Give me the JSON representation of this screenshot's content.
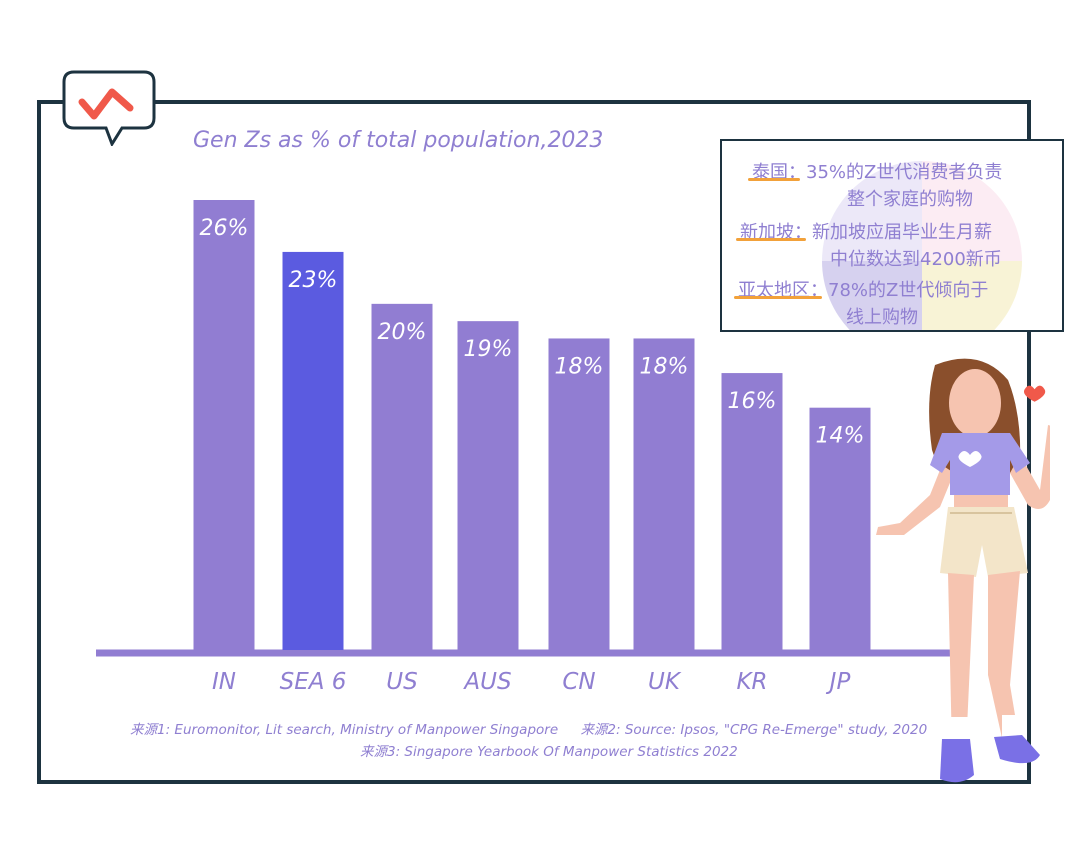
{
  "chart_data": {
    "type": "bar",
    "title": "Gen Zs as % of total population,2023",
    "categories": [
      "IN",
      "SEA 6",
      "US",
      "AUS",
      "CN",
      "UK",
      "KR",
      "JP"
    ],
    "values": [
      26,
      23,
      20,
      19,
      18,
      18,
      16,
      14
    ],
    "value_labels": [
      "26%",
      "23%",
      "20%",
      "19%",
      "18%",
      "18%",
      "16%",
      "14%"
    ],
    "unit": "%",
    "ylim": [
      0,
      26
    ],
    "grid": false,
    "highlight_index": 1,
    "colors": {
      "bar": "#917dd2",
      "highlight": "#5b5be0",
      "axis": "#917dd2",
      "label": "#8f7fd1"
    }
  },
  "sources": {
    "s1": "来源1: Euromonitor, Lit search, Ministry of Manpower Singapore",
    "s2": "来源2: Source: Ipsos, \"CPG Re-Emerge\" study, 2020",
    "s3": "来源3: Singapore Yearbook Of Manpower Statistics 2022"
  },
  "info_box": {
    "items": [
      {
        "key": "泰国：",
        "line1": "35%的Z世代消费者负责",
        "line2": "整个家庭的购物"
      },
      {
        "key": "新加坡：",
        "line1": "新加坡应届毕业生月薪",
        "line2": "中位数达到4200新币"
      },
      {
        "key": "亚太地区：",
        "line1": "78%的Z世代倾向于",
        "line2": "线上购物"
      }
    ]
  },
  "icons": {
    "logo": "checkmark-speech-bubble-icon",
    "illustration": "girl-finger-heart-illustration"
  },
  "colors": {
    "frame": "#1d3340",
    "accent": "#f0594a",
    "underline": "#f2a13a"
  }
}
